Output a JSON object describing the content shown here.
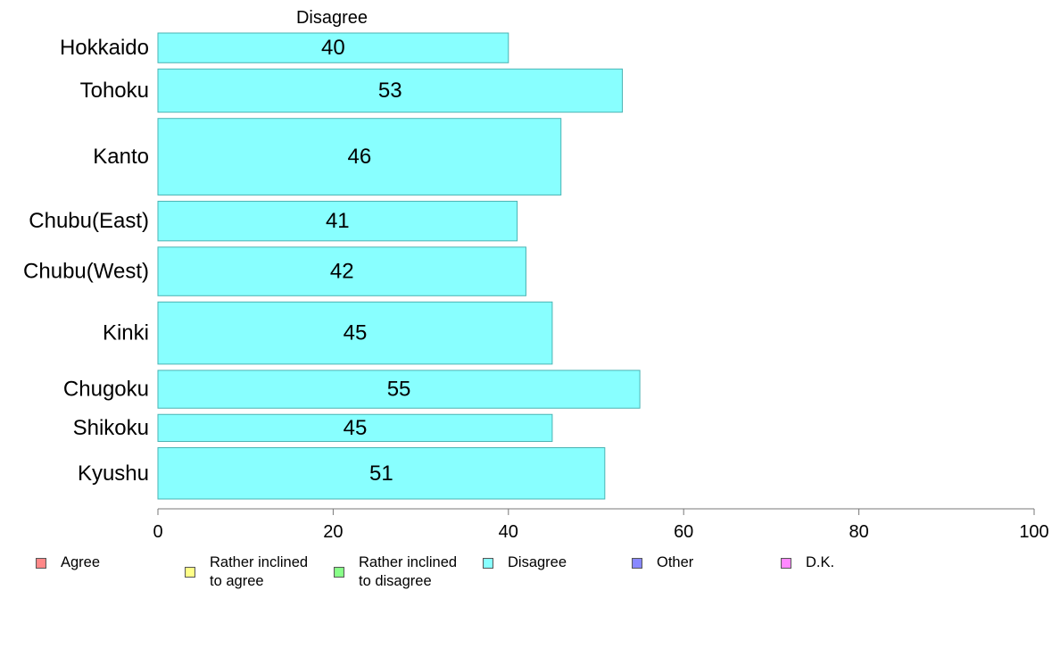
{
  "chart_data": {
    "type": "bar",
    "orientation": "horizontal",
    "series_title": "Disagree",
    "categories": [
      "Hokkaido",
      "Tohoku",
      "Kanto",
      "Chubu(East)",
      "Chubu(West)",
      "Kinki",
      "Chugoku",
      "Shikoku",
      "Kyushu"
    ],
    "values": [
      40,
      53,
      46,
      41,
      42,
      45,
      55,
      45,
      51
    ],
    "data_labels": [
      "40",
      "53",
      "46",
      "41",
      "42",
      "45",
      "55",
      "45",
      "51"
    ],
    "relative_sample_size": [
      33,
      48,
      85,
      44,
      54,
      69,
      42,
      30,
      57
    ],
    "xlim": [
      0,
      100
    ],
    "x_ticks": [
      0,
      20,
      40,
      60,
      80,
      100
    ],
    "xlabel": "",
    "ylabel": "",
    "bar_color": "#88ffff",
    "bar_edge_color": "#4ab3b3",
    "grid": false,
    "legend_position": "bottom",
    "legend": [
      {
        "label": "Agree",
        "color": "#ff8888"
      },
      {
        "label": "Rather inclined\nto agree",
        "color": "#ffff88"
      },
      {
        "label": "Rather inclined\nto disagree",
        "color": "#88ff88"
      },
      {
        "label": "Disagree",
        "color": "#88ffff"
      },
      {
        "label": "Other",
        "color": "#8888ff"
      },
      {
        "label": "D.K.",
        "color": "#ff88ff"
      }
    ]
  }
}
